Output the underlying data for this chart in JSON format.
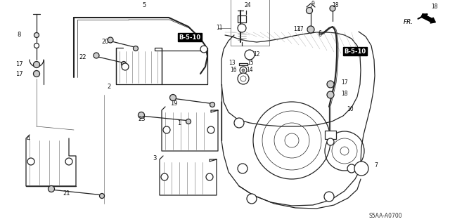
{
  "bg_color": "#ffffff",
  "line_color": "#222222",
  "diagram_code": "S5AA-A0700",
  "b510_label": "B-5-10",
  "fr_label": "FR.",
  "figsize": [
    6.4,
    3.19
  ],
  "dpi": 100,
  "lw_main": 0.9,
  "lw_thick": 1.5,
  "lw_thin": 0.5,
  "label_fs": 6.0,
  "label_color": "#111111"
}
